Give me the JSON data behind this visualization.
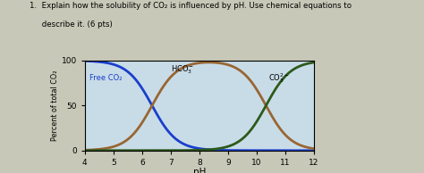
{
  "title_line1": "1.  Explain how the solubility of CO₂ is influenced by pH. Use chemical equations to",
  "title_line2": "     describe it. (6 pts)",
  "xlabel": "pH",
  "ylabel": "Percent of total CO₂",
  "xlim": [
    4,
    12
  ],
  "ylim": [
    0,
    100
  ],
  "xticks": [
    4,
    5,
    6,
    7,
    8,
    9,
    10,
    11,
    12
  ],
  "yticks": [
    0,
    50,
    100
  ],
  "curve1_color": "#1a3fcc",
  "curve2_color": "#996633",
  "curve3_color": "#2d5a1b",
  "label1_text": "Free CO₂",
  "label2_text": "HCO₃⁻",
  "label3_text": "CO₃²⁻",
  "plot_bg_color": "#c8dce8",
  "page_bg_color": "#c8c8b8",
  "pKa1": 6.35,
  "pKa2": 10.33,
  "linewidth": 2.0
}
